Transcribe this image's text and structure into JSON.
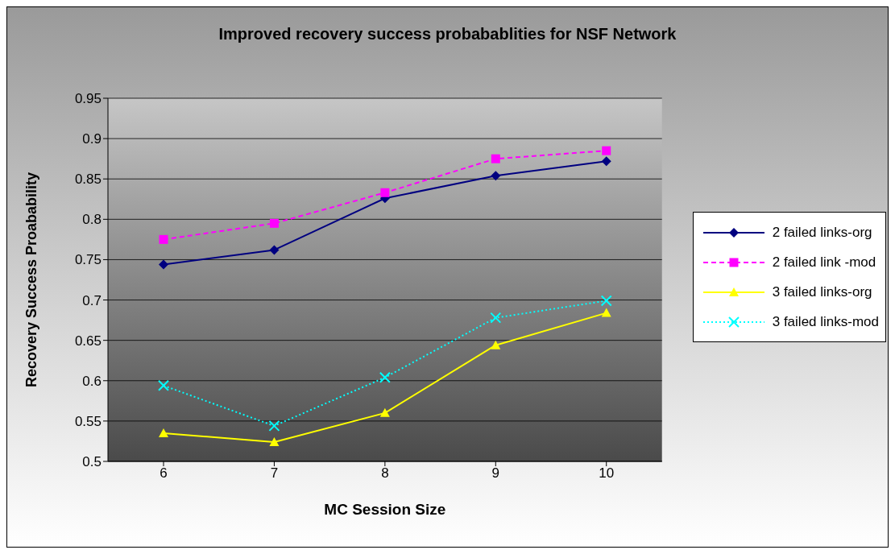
{
  "chart_data": {
    "type": "line",
    "title": "Improved recovery success probabablities for NSF Network",
    "xlabel": "MC Session Size",
    "ylabel": "Recovery Success Proabability",
    "categories": [
      "6",
      "7",
      "8",
      "9",
      "10"
    ],
    "series": [
      {
        "name": "2 failed links-org",
        "color": "#000080",
        "marker": "diamond",
        "line_style": "solid",
        "values": [
          0.744,
          0.762,
          0.826,
          0.854,
          0.872
        ]
      },
      {
        "name": "2 failed link -mod",
        "color": "#ff00ff",
        "marker": "square",
        "line_style": "dashed",
        "values": [
          0.775,
          0.795,
          0.833,
          0.875,
          0.885
        ]
      },
      {
        "name": "3 failed links-org",
        "color": "#ffff00",
        "marker": "triangle",
        "line_style": "solid",
        "values": [
          0.535,
          0.524,
          0.56,
          0.644,
          0.684
        ]
      },
      {
        "name": "3 failed links-mod",
        "color": "#00ffff",
        "marker": "cross",
        "line_style": "dotted",
        "values": [
          0.594,
          0.544,
          0.604,
          0.678,
          0.699
        ]
      }
    ],
    "ylim": [
      0.5,
      0.95
    ],
    "yticks": [
      0.5,
      0.55,
      0.6,
      0.65,
      0.7,
      0.75,
      0.8,
      0.85,
      0.9,
      0.95
    ],
    "grid": "y",
    "legend": "right"
  }
}
